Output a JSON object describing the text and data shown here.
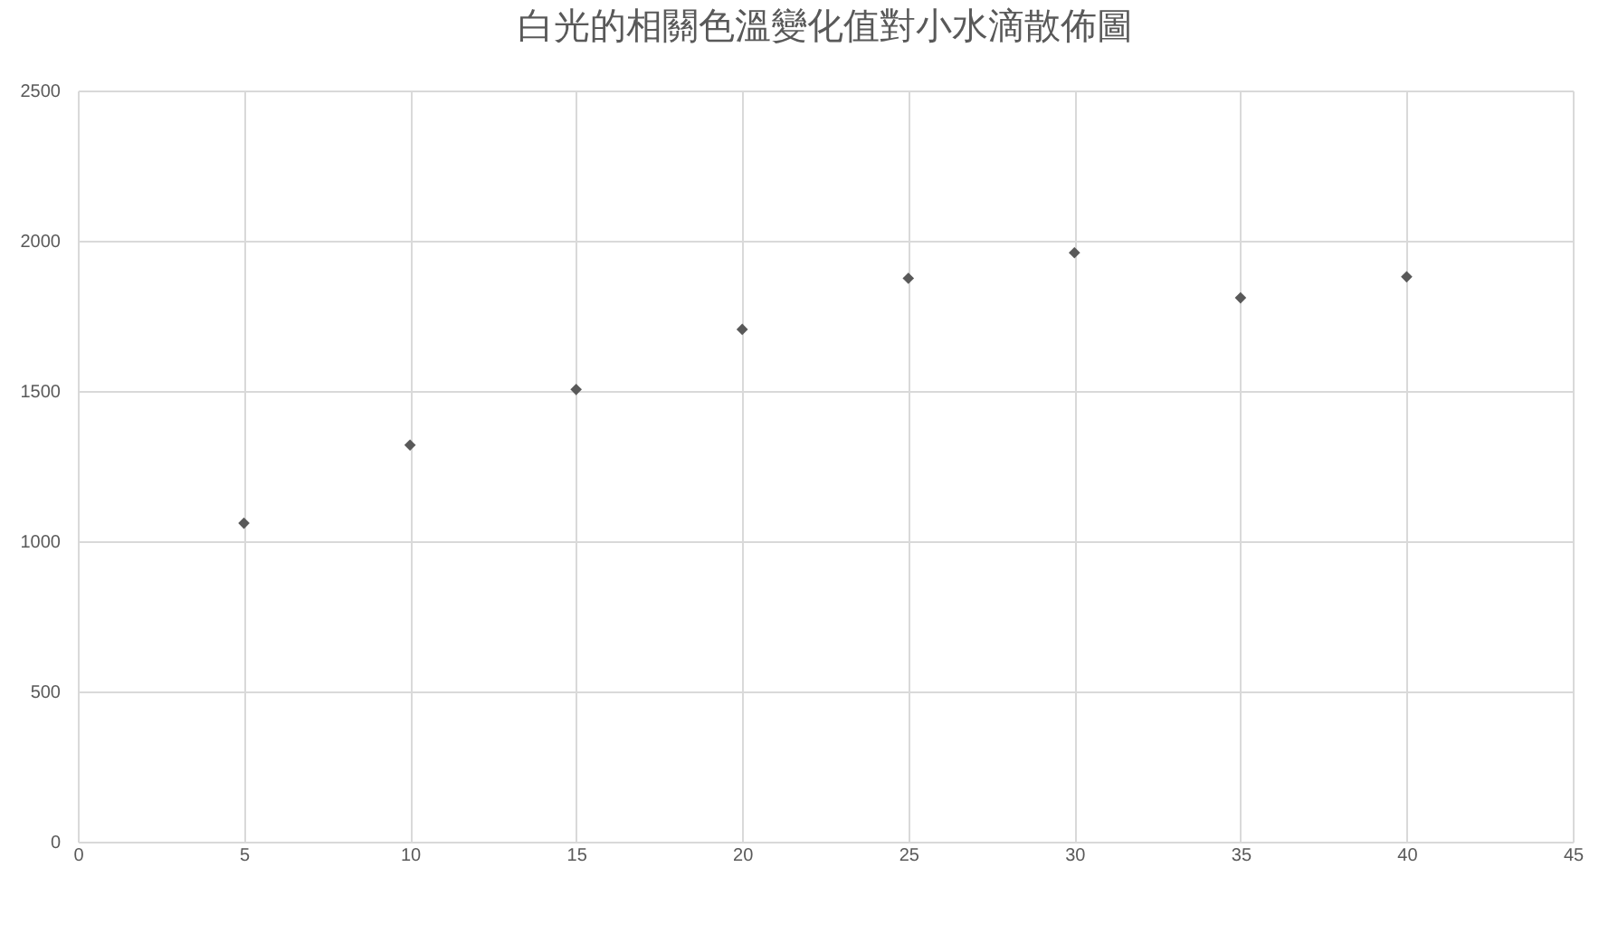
{
  "chart_data": {
    "type": "scatter",
    "title": "白光的相關色溫變化值對小水滴散佈圖",
    "x": [
      5,
      10,
      15,
      20,
      25,
      30,
      35,
      40
    ],
    "series": [
      {
        "color": "#595959",
        "values": [
          1060,
          1320,
          1505,
          1705,
          1875,
          1960,
          1810,
          1880
        ]
      }
    ],
    "xlim": [
      0,
      45
    ],
    "xticks": [
      0,
      5,
      10,
      15,
      20,
      25,
      30,
      35,
      40,
      45
    ],
    "ylim": [
      0,
      2500
    ],
    "yticks": [
      0,
      500,
      1000,
      1500,
      2000,
      2500
    ],
    "grid": true,
    "marker": "diamond"
  }
}
